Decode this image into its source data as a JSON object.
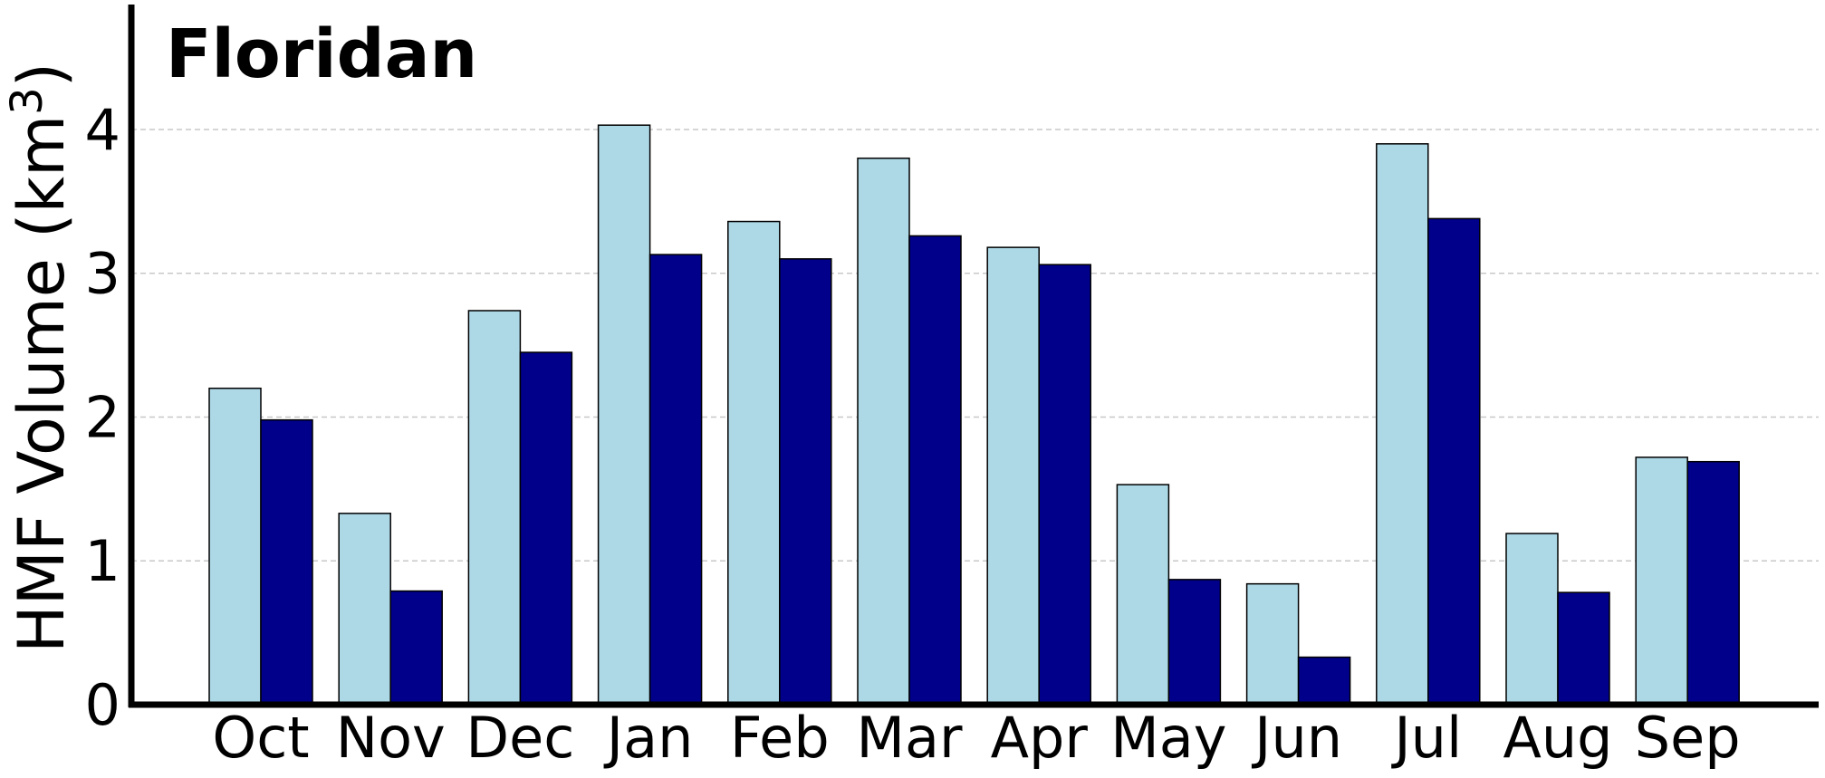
{
  "chart_data": {
    "type": "bar",
    "title": "Floridan",
    "xlabel": "",
    "ylabel": "HMF Volume (km",
    "ylabel_sup": "3",
    "ylabel_end": ")",
    "categories": [
      "Oct",
      "Nov",
      "Dec",
      "Jan",
      "Feb",
      "Mar",
      "Apr",
      "May",
      "Jun",
      "Jul",
      "Aug",
      "Sep"
    ],
    "series": [
      {
        "color": "#add8e6",
        "values": [
          2.2,
          1.33,
          2.74,
          4.03,
          3.36,
          3.8,
          3.18,
          1.53,
          0.84,
          3.9,
          1.19,
          1.72
        ]
      },
      {
        "color": "#00008b",
        "values": [
          1.98,
          0.79,
          2.45,
          3.13,
          3.1,
          3.26,
          3.06,
          0.87,
          0.33,
          3.38,
          0.78,
          1.69
        ]
      }
    ],
    "ylim": [
      0,
      4.85
    ],
    "yticks": [
      0,
      1,
      2,
      3,
      4
    ],
    "grid": "horizontal dashed"
  }
}
